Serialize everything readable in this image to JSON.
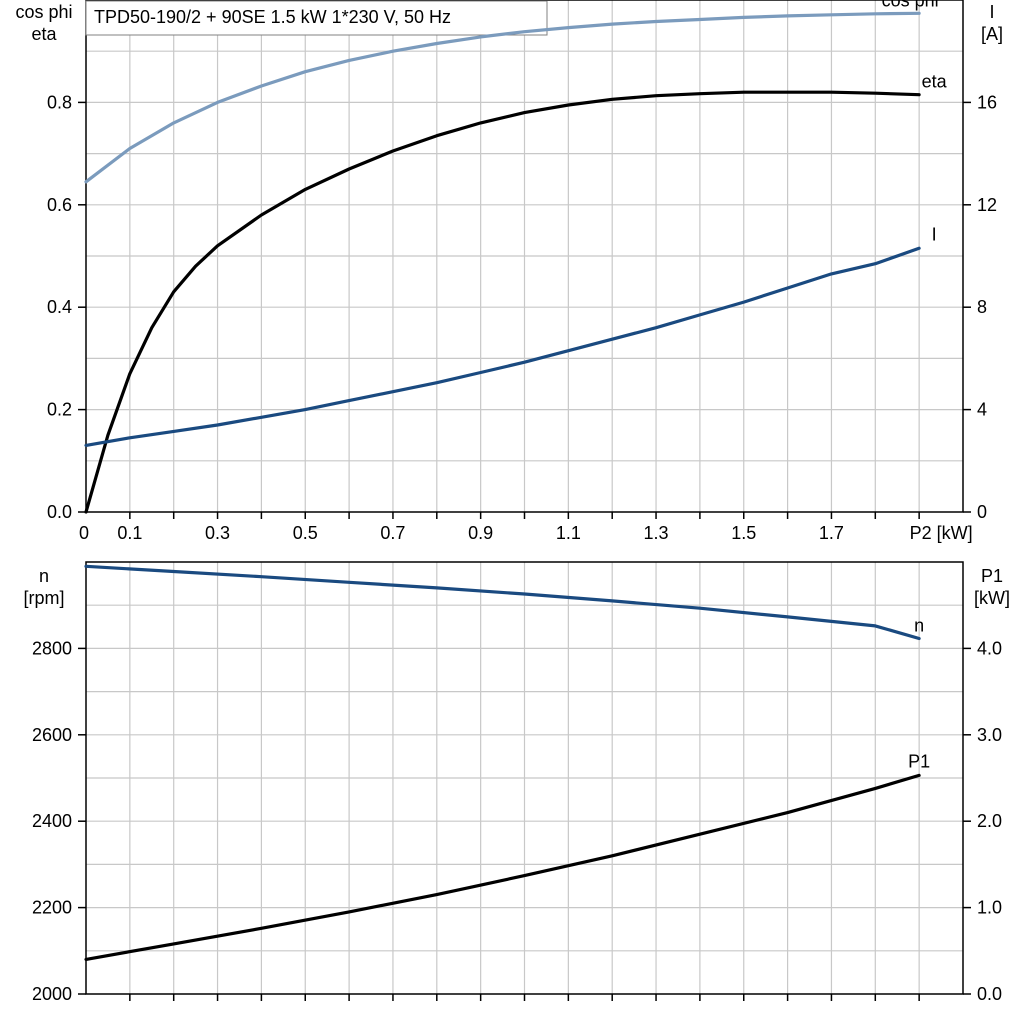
{
  "chart_data": [
    {
      "type": "line",
      "title": "TPD50-190/2 + 90SE   1.5 kW   1*230 V, 50 Hz",
      "xlabel": "P2 [kW]",
      "xlim": [
        0,
        2.0
      ],
      "x_tick_labels": [
        "0",
        "0.1",
        "0.3",
        "0.5",
        "0.7",
        "0.9",
        "1.1",
        "1.3",
        "1.5",
        "1.7"
      ],
      "ylabel_left": "cos phi\neta",
      "ylim_left": [
        0,
        1.0
      ],
      "y_tick_labels_left": [
        "0.0",
        "0.2",
        "0.4",
        "0.6",
        "0.8"
      ],
      "ylabel_right": "I\n[A]",
      "ylim_right": [
        0,
        20
      ],
      "y_tick_labels_right": [
        "0",
        "4",
        "8",
        "12",
        "16"
      ],
      "grid": true,
      "series": [
        {
          "name": "cos phi",
          "axis": "left",
          "color": "#7b9bbd",
          "x": [
            0,
            0.1,
            0.2,
            0.3,
            0.4,
            0.5,
            0.6,
            0.7,
            0.8,
            0.9,
            1.0,
            1.1,
            1.2,
            1.3,
            1.4,
            1.5,
            1.6,
            1.7,
            1.8,
            1.9
          ],
          "values": [
            0.645,
            0.71,
            0.76,
            0.8,
            0.832,
            0.86,
            0.882,
            0.9,
            0.915,
            0.928,
            0.938,
            0.946,
            0.953,
            0.958,
            0.962,
            0.966,
            0.969,
            0.971,
            0.973,
            0.974
          ]
        },
        {
          "name": "eta",
          "axis": "left",
          "color": "#000000",
          "x": [
            0,
            0.05,
            0.1,
            0.15,
            0.2,
            0.25,
            0.3,
            0.4,
            0.5,
            0.6,
            0.7,
            0.8,
            0.9,
            1.0,
            1.1,
            1.2,
            1.3,
            1.4,
            1.5,
            1.6,
            1.7,
            1.8,
            1.9
          ],
          "values": [
            0.0,
            0.15,
            0.27,
            0.36,
            0.43,
            0.48,
            0.52,
            0.58,
            0.63,
            0.67,
            0.705,
            0.735,
            0.76,
            0.78,
            0.795,
            0.806,
            0.813,
            0.817,
            0.82,
            0.82,
            0.82,
            0.818,
            0.815
          ]
        },
        {
          "name": "I",
          "axis": "right",
          "color": "#1a4a80",
          "x": [
            0,
            0.1,
            0.2,
            0.3,
            0.4,
            0.5,
            0.6,
            0.7,
            0.8,
            0.9,
            1.0,
            1.1,
            1.2,
            1.3,
            1.4,
            1.5,
            1.6,
            1.7,
            1.8,
            1.9
          ],
          "values": [
            2.6,
            2.9,
            3.15,
            3.4,
            3.7,
            4.0,
            4.35,
            4.7,
            5.05,
            5.45,
            5.85,
            6.3,
            6.75,
            7.2,
            7.7,
            8.2,
            8.75,
            9.3,
            9.7,
            10.3
          ]
        }
      ]
    },
    {
      "type": "line",
      "xlim": [
        0,
        2.0
      ],
      "ylabel_left": "n\n[rpm]",
      "ylim_left": [
        2000,
        3000
      ],
      "y_tick_labels_left": [
        "2000",
        "2200",
        "2400",
        "2600",
        "2800"
      ],
      "ylabel_right": "P1\n[kW]",
      "ylim_right": [
        0,
        5
      ],
      "y_tick_labels_right": [
        "0.0",
        "1.0",
        "2.0",
        "3.0",
        "4.0"
      ],
      "grid": true,
      "series": [
        {
          "name": "n",
          "axis": "left",
          "color": "#1a4a80",
          "x": [
            0,
            0.2,
            0.4,
            0.6,
            0.8,
            1.0,
            1.2,
            1.4,
            1.6,
            1.8,
            1.9
          ],
          "values": [
            2990,
            2978,
            2966,
            2953,
            2940,
            2926,
            2910,
            2893,
            2873,
            2852,
            2823
          ]
        },
        {
          "name": "P1",
          "axis": "right",
          "color": "#000000",
          "x": [
            0,
            0.2,
            0.4,
            0.6,
            0.8,
            1.0,
            1.2,
            1.4,
            1.6,
            1.8,
            1.9
          ],
          "values": [
            0.4,
            0.58,
            0.76,
            0.95,
            1.15,
            1.37,
            1.6,
            1.85,
            2.1,
            2.38,
            2.53
          ]
        }
      ]
    }
  ]
}
